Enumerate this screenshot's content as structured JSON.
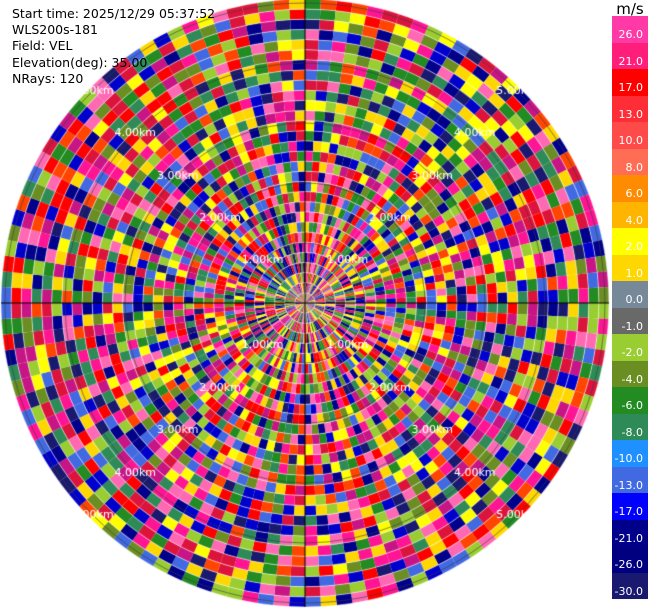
{
  "info": {
    "start_time": "Start time: 2025/12/29 05:37:52",
    "instrument": "WLS200s-181",
    "field": "Field: VEL",
    "elevation": "Elevation(deg): 35.00",
    "nrays": "NRays: 120"
  },
  "colorbar": {
    "unit": "m/s",
    "levels": [
      {
        "label": "26.0",
        "color": "#ff3aa6"
      },
      {
        "label": "21.0",
        "color": "#ff1f7a"
      },
      {
        "label": "17.0",
        "color": "#ff0000"
      },
      {
        "label": "13.0",
        "color": "#ff2e36"
      },
      {
        "label": "10.0",
        "color": "#ff4a4a"
      },
      {
        "label": "8.0",
        "color": "#ff6d55"
      },
      {
        "label": "6.0",
        "color": "#ff8c00"
      },
      {
        "label": "4.0",
        "color": "#ffb400"
      },
      {
        "label": "2.0",
        "color": "#ffff00"
      },
      {
        "label": "1.0",
        "color": "#ffd700"
      },
      {
        "label": "0.0",
        "color": "#778899"
      },
      {
        "label": "-1.0",
        "color": "#696969"
      },
      {
        "label": "-2.0",
        "color": "#9acd32"
      },
      {
        "label": "-4.0",
        "color": "#6b8e23"
      },
      {
        "label": "-6.0",
        "color": "#228b22"
      },
      {
        "label": "-8.0",
        "color": "#2e8b57"
      },
      {
        "label": "-10.0",
        "color": "#1e90ff"
      },
      {
        "label": "-13.0",
        "color": "#4169e1"
      },
      {
        "label": "-17.0",
        "color": "#0000ff"
      },
      {
        "label": "-21.0",
        "color": "#00008b"
      },
      {
        "label": "-26.0",
        "color": "#000080"
      },
      {
        "label": "-30.0",
        "color": "#191970"
      }
    ]
  },
  "range_labels": [
    "1.00km",
    "2.00km",
    "3.00km",
    "4.00km",
    "5.00km"
  ],
  "ppi": {
    "n_rays": 120,
    "n_gates": 30,
    "palette": [
      "#ff1493",
      "#ff0000",
      "#ffff00",
      "#0000cd",
      "#00008b",
      "#191970",
      "#9acd32",
      "#6b8e23",
      "#228b22",
      "#ff4500",
      "#ff69b4",
      "#c71585",
      "#4169e1",
      "#2e8b57",
      "#ffd700",
      "#dc143c"
    ]
  }
}
